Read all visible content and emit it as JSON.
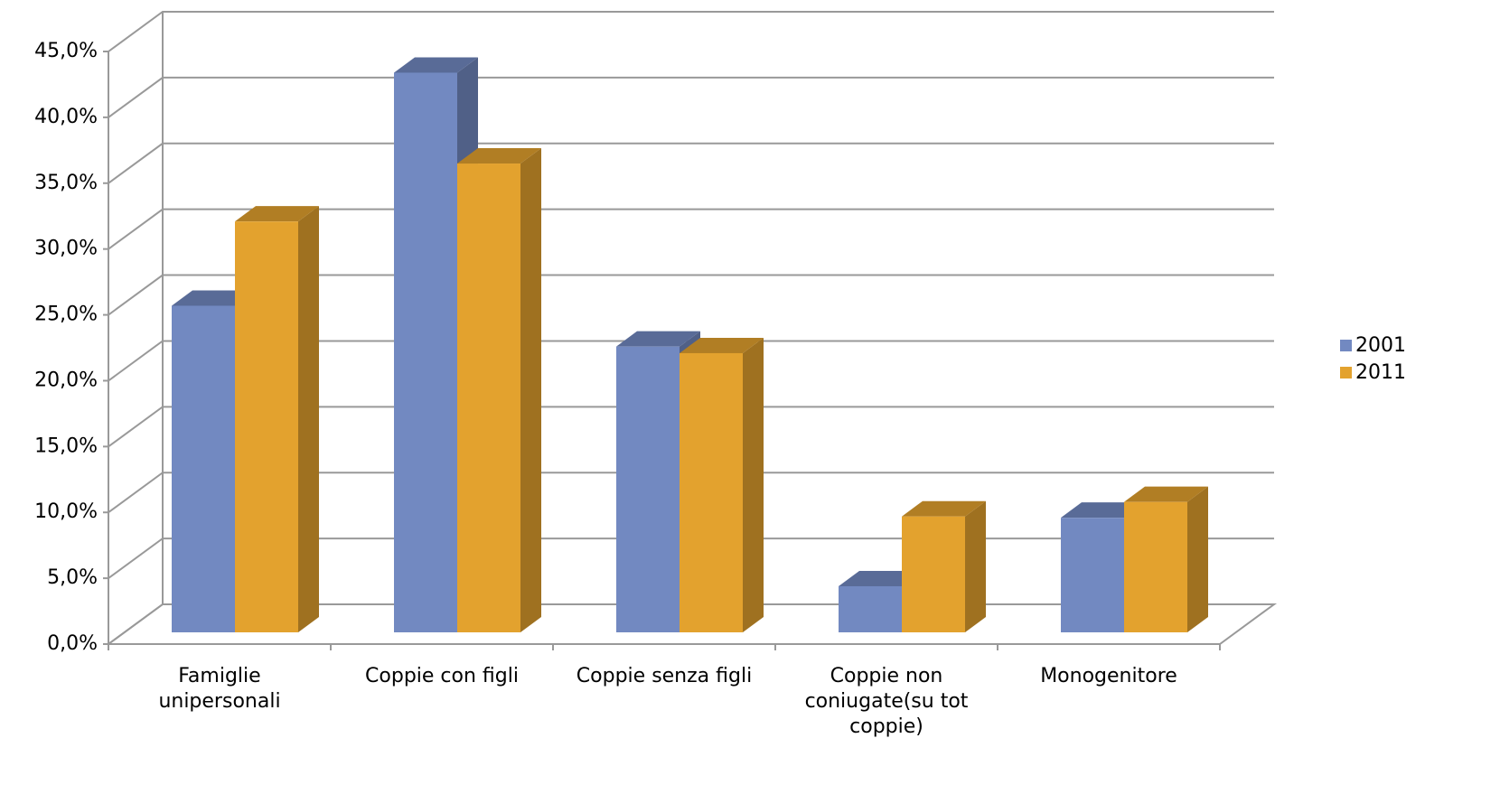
{
  "chart_data": {
    "type": "bar3d",
    "categories": [
      "Famiglie unipersonali",
      "Coppie con figli",
      "Coppie senza figli",
      "Coppie non coniugate(su tot coppie)",
      "Monogenitore"
    ],
    "series": [
      {
        "name": "2001",
        "color": "#7289c1",
        "values": [
          24.8,
          42.5,
          21.7,
          3.5,
          8.7
        ]
      },
      {
        "name": "2011",
        "color": "#e3a22e",
        "values": [
          31.2,
          35.6,
          21.2,
          8.8,
          9.9
        ]
      }
    ],
    "ylim": [
      0,
      45
    ],
    "yticks": [
      {
        "value": 0,
        "label": "0,0%"
      },
      {
        "value": 5,
        "label": "5,0%"
      },
      {
        "value": 10,
        "label": "10,0%"
      },
      {
        "value": 15,
        "label": "15,0%"
      },
      {
        "value": 20,
        "label": "20,0%"
      },
      {
        "value": 25,
        "label": "25,0%"
      },
      {
        "value": 30,
        "label": "30,0%"
      },
      {
        "value": 35,
        "label": "35,0%"
      },
      {
        "value": 40,
        "label": "40,0%"
      },
      {
        "value": 45,
        "label": "45,0%"
      }
    ],
    "grid": true,
    "legend": "right"
  }
}
